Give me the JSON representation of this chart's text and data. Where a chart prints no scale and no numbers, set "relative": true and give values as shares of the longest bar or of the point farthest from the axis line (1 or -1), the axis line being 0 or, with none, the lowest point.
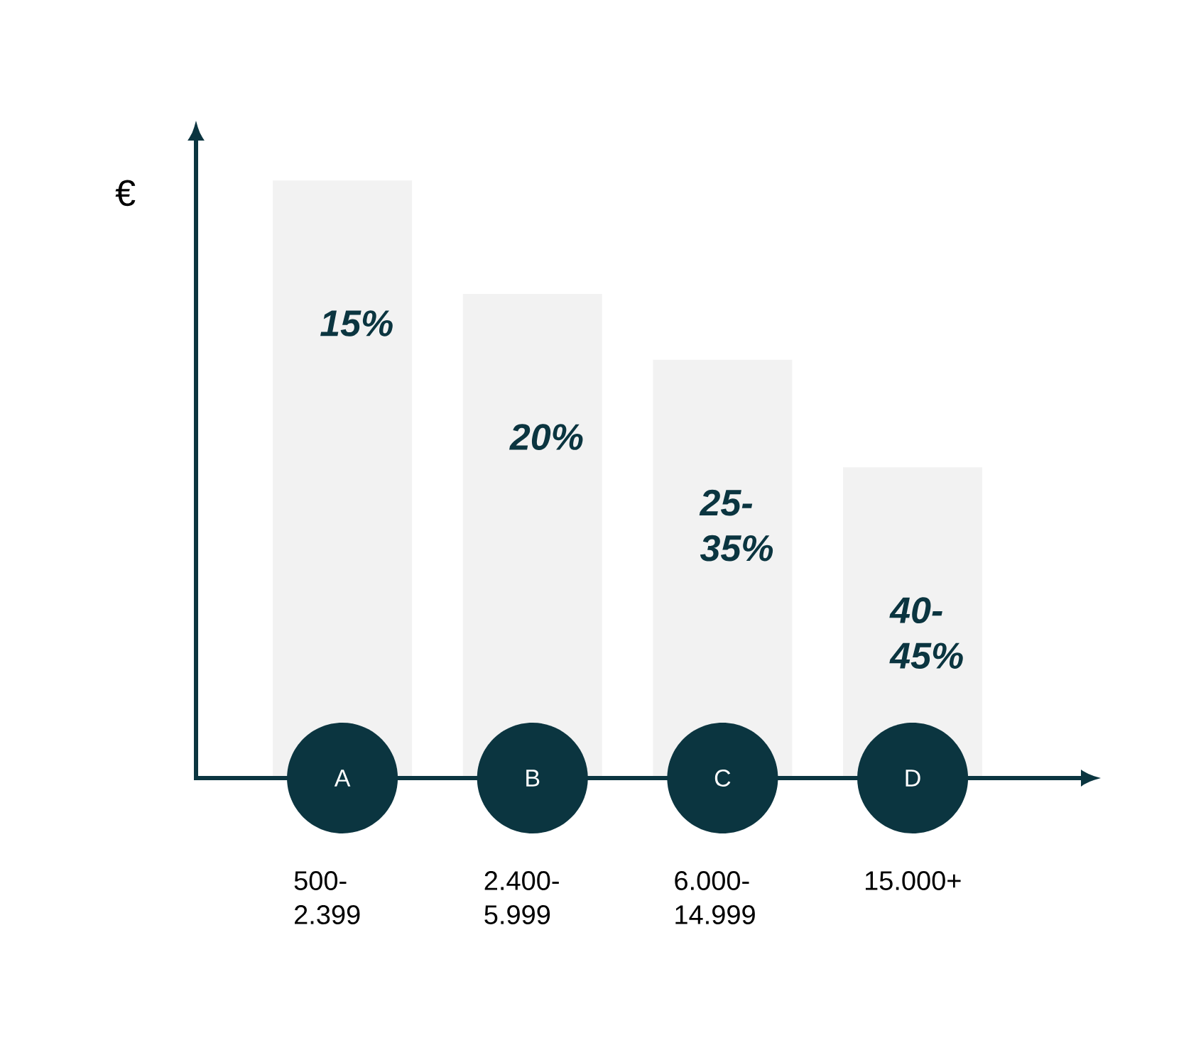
{
  "chart_data": {
    "type": "bar",
    "ylabel": "€",
    "categories": [
      "A",
      "B",
      "C",
      "D"
    ],
    "values": [
      1,
      0.81,
      0.7,
      0.52
    ],
    "relative": true,
    "color": "#f2f2f2",
    "annotations": [
      "15%",
      "20%",
      "25-35%",
      "40-45%",
      "500-2.399",
      "2.400-5.999",
      "6.000-14.999",
      "15.000+"
    ]
  }
}
